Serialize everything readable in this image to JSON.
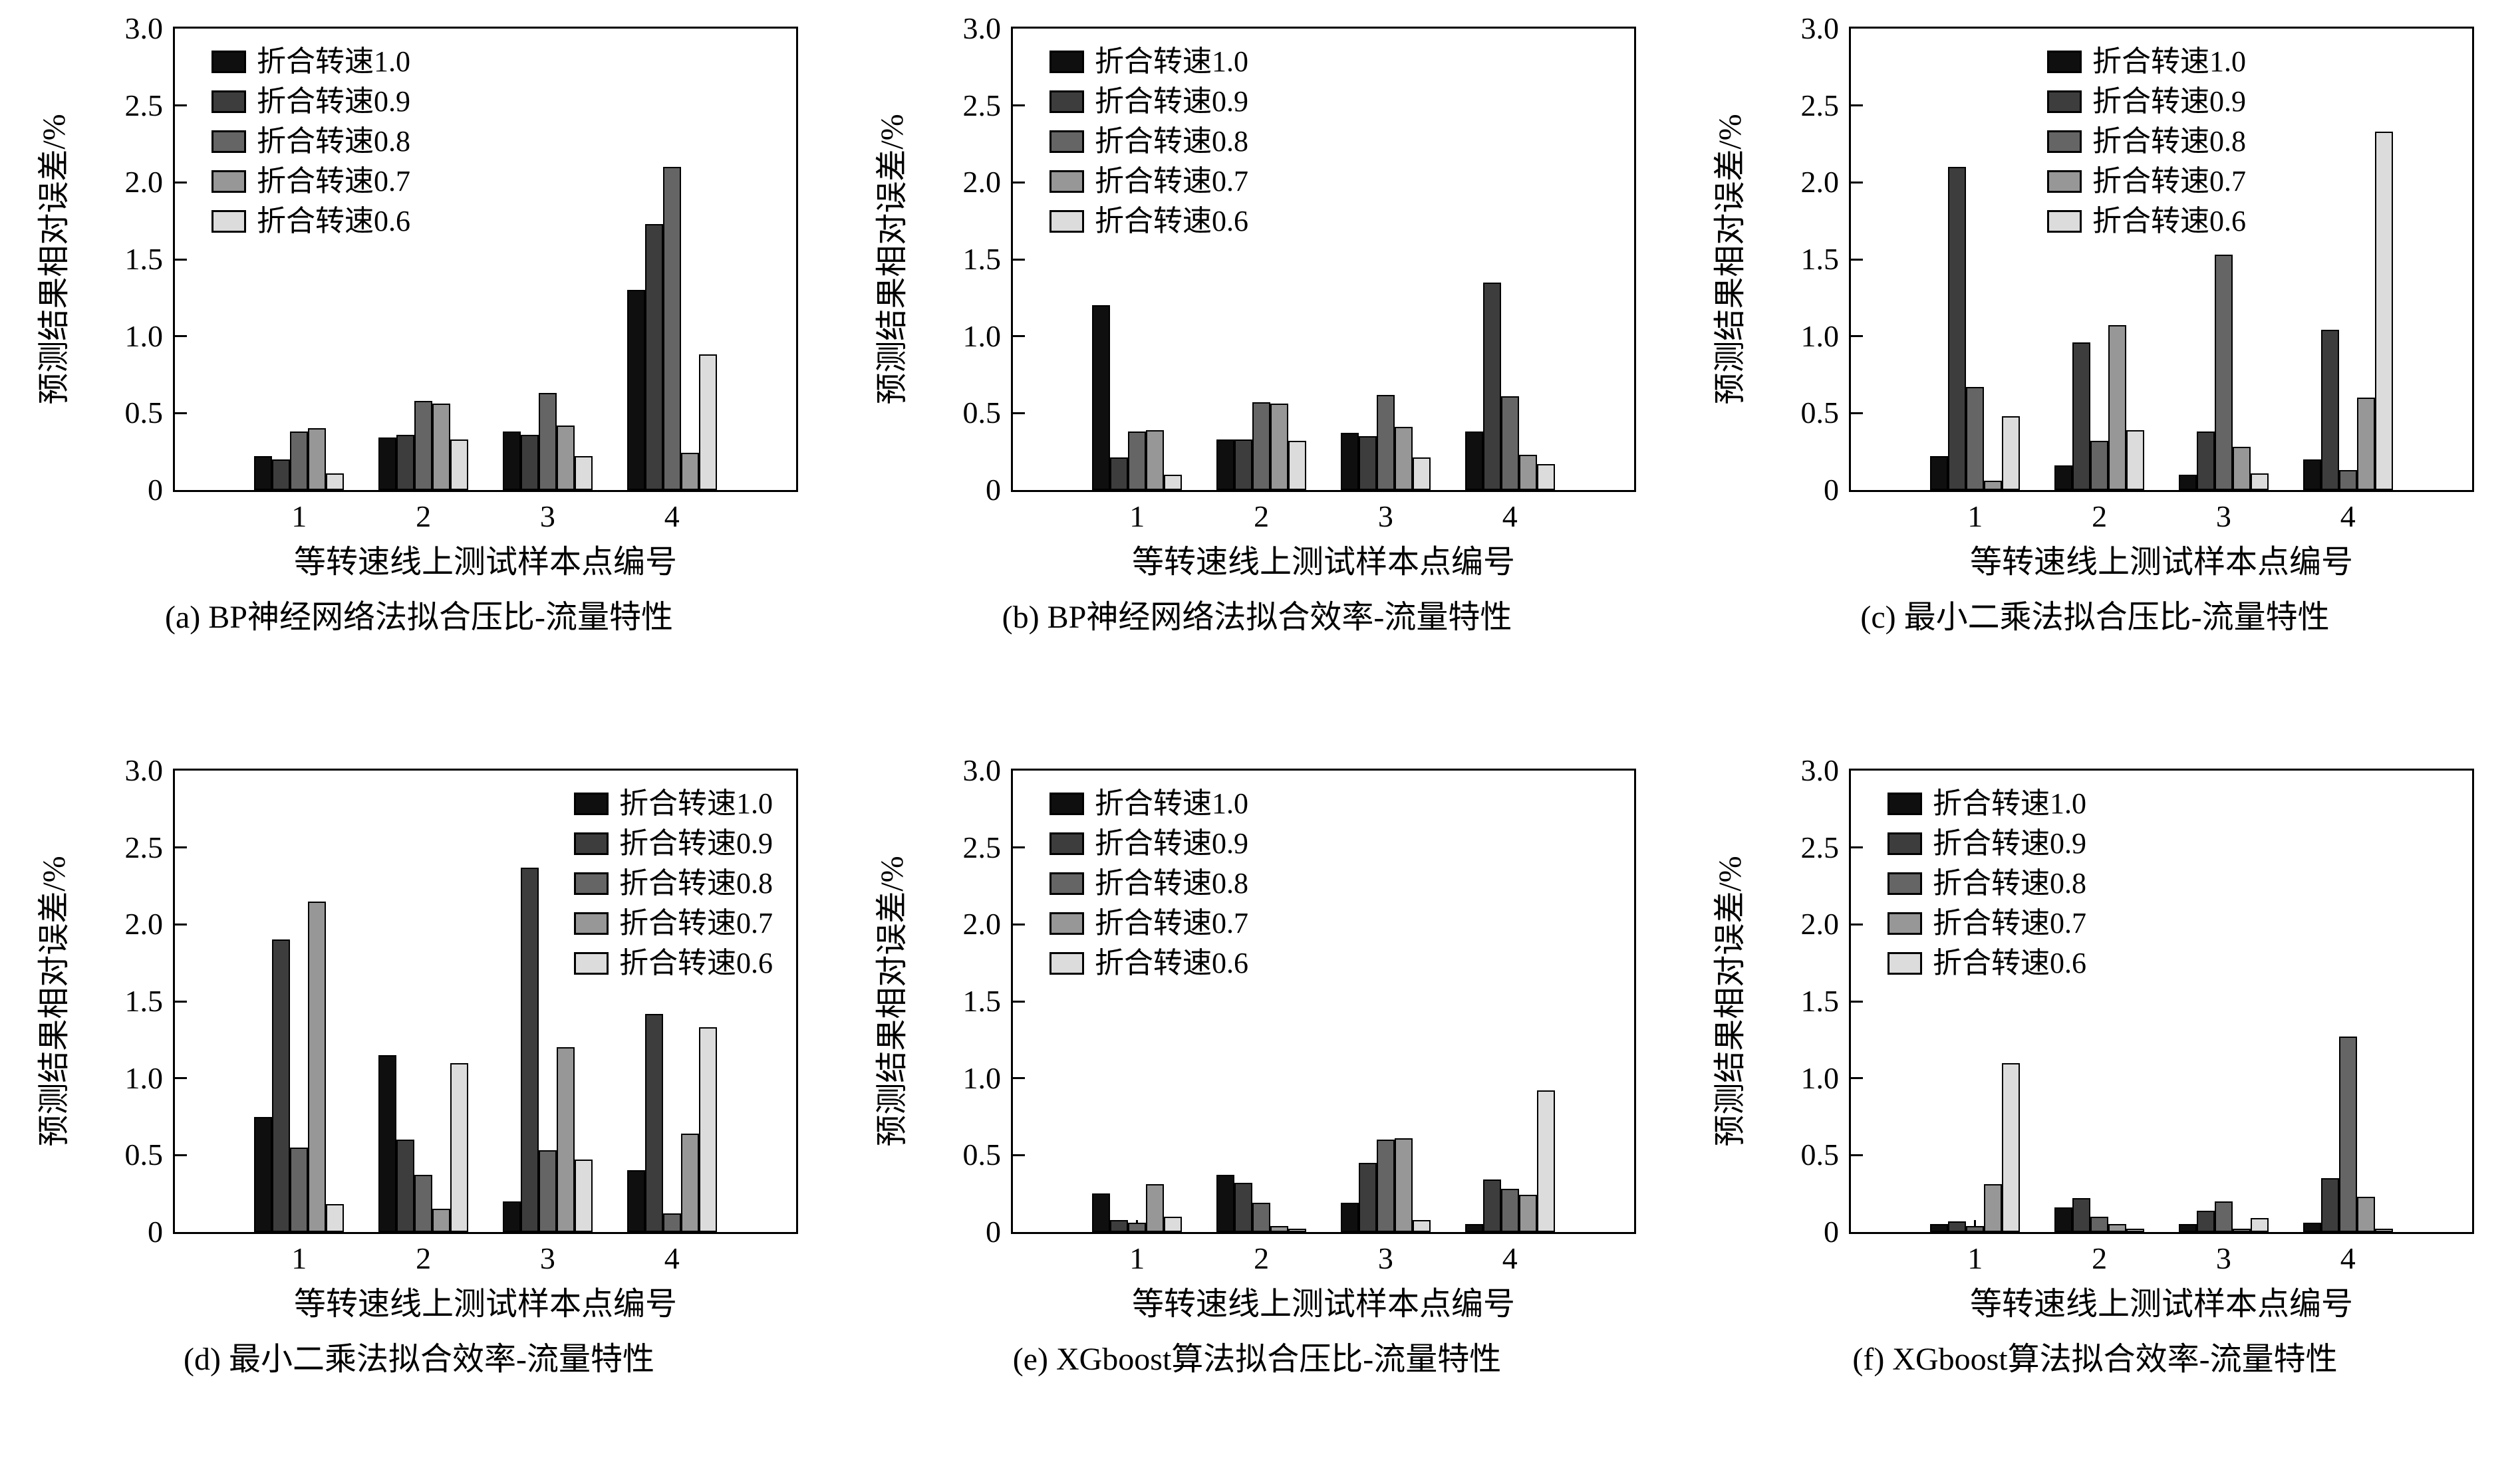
{
  "figure": {
    "ylabel": "预测结果相对误差/%",
    "xlabel": "等转速线上测试样本点编号",
    "legend_labels": [
      "折合转速1.0",
      "折合转速0.9",
      "折合转速0.8",
      "折合转速0.7",
      "折合转速0.6"
    ],
    "series_colors": [
      "#0f0f0f",
      "#3d3d3d",
      "#656565",
      "#979797",
      "#dcdcdc"
    ],
    "ytick_values": [
      0,
      0.5,
      1,
      1.5,
      2,
      2.5,
      3
    ],
    "ytick_labels": [
      "0",
      "0.5",
      "1.0",
      "1.5",
      "2.0",
      "2.5",
      "3.0"
    ],
    "ylim": [
      0,
      3
    ]
  },
  "chart_data": [
    {
      "id": "a",
      "type": "bar",
      "caption": "(a) BP神经网络法拟合压比-流量特性",
      "xlabel": "等转速线上测试样本点编号",
      "ylabel": "预测结果相对误差/%",
      "categories": [
        "1",
        "2",
        "3",
        "4"
      ],
      "ylim": [
        0,
        3.0
      ],
      "legend_pos": "top-left",
      "series": [
        {
          "name": "折合转速1.0",
          "values": [
            0.22,
            0.34,
            0.38,
            1.3
          ]
        },
        {
          "name": "折合转速0.9",
          "values": [
            0.2,
            0.36,
            0.36,
            1.73
          ]
        },
        {
          "name": "折合转速0.8",
          "values": [
            0.38,
            0.58,
            0.63,
            2.1
          ]
        },
        {
          "name": "折合转速0.7",
          "values": [
            0.4,
            0.56,
            0.42,
            0.24
          ]
        },
        {
          "name": "折合转速0.6",
          "values": [
            0.11,
            0.33,
            0.22,
            0.88
          ]
        }
      ]
    },
    {
      "id": "b",
      "type": "bar",
      "caption": "(b) BP神经网络法拟合效率-流量特性",
      "xlabel": "等转速线上测试样本点编号",
      "ylabel": "预测结果相对误差/%",
      "categories": [
        "1",
        "2",
        "3",
        "4"
      ],
      "ylim": [
        0,
        3.0
      ],
      "legend_pos": "top-left",
      "series": [
        {
          "name": "折合转速1.0",
          "values": [
            1.2,
            0.33,
            0.37,
            0.38
          ]
        },
        {
          "name": "折合转速0.9",
          "values": [
            0.21,
            0.33,
            0.35,
            1.35
          ]
        },
        {
          "name": "折合转速0.8",
          "values": [
            0.38,
            0.57,
            0.62,
            0.61
          ]
        },
        {
          "name": "折合转速0.7",
          "values": [
            0.39,
            0.56,
            0.41,
            0.23
          ]
        },
        {
          "name": "折合转速0.6",
          "values": [
            0.1,
            0.32,
            0.21,
            0.17
          ]
        }
      ]
    },
    {
      "id": "c",
      "type": "bar",
      "caption": "(c) 最小二乘法拟合压比-流量特性",
      "xlabel": "等转速线上测试样本点编号",
      "ylabel": "预测结果相对误差/%",
      "categories": [
        "1",
        "2",
        "3",
        "4"
      ],
      "ylim": [
        0,
        3.0
      ],
      "legend_pos": "top-center",
      "series": [
        {
          "name": "折合转速1.0",
          "values": [
            0.22,
            0.16,
            0.1,
            0.2
          ]
        },
        {
          "name": "折合转速0.9",
          "values": [
            2.1,
            0.96,
            0.38,
            1.04
          ]
        },
        {
          "name": "折合转速0.8",
          "values": [
            0.67,
            0.32,
            1.53,
            0.13
          ]
        },
        {
          "name": "折合转速0.7",
          "values": [
            0.06,
            1.07,
            0.28,
            0.6
          ]
        },
        {
          "name": "折合转速0.6",
          "values": [
            0.48,
            0.39,
            0.11,
            2.33
          ]
        }
      ]
    },
    {
      "id": "d",
      "type": "bar",
      "caption": "(d) 最小二乘法拟合效率-流量特性",
      "xlabel": "等转速线上测试样本点编号",
      "ylabel": "预测结果相对误差/%",
      "categories": [
        "1",
        "2",
        "3",
        "4"
      ],
      "ylim": [
        0,
        3.0
      ],
      "legend_pos": "top-right",
      "series": [
        {
          "name": "折合转速1.0",
          "values": [
            0.75,
            1.15,
            0.2,
            0.4
          ]
        },
        {
          "name": "折合转速0.9",
          "values": [
            1.9,
            0.6,
            2.37,
            1.42
          ]
        },
        {
          "name": "折合转速0.8",
          "values": [
            0.55,
            0.37,
            0.53,
            0.12
          ]
        },
        {
          "name": "折合转速0.7",
          "values": [
            2.15,
            0.15,
            1.2,
            0.64
          ]
        },
        {
          "name": "折合转速0.6",
          "values": [
            0.18,
            1.1,
            0.47,
            1.33
          ]
        }
      ]
    },
    {
      "id": "e",
      "type": "bar",
      "caption": "(e) XGboost算法拟合压比-流量特性",
      "xlabel": "等转速线上测试样本点编号",
      "ylabel": "预测结果相对误差/%",
      "categories": [
        "1",
        "2",
        "3",
        "4"
      ],
      "ylim": [
        0,
        3.0
      ],
      "legend_pos": "top-left",
      "series": [
        {
          "name": "折合转速1.0",
          "values": [
            0.25,
            0.37,
            0.19,
            0.05
          ]
        },
        {
          "name": "折合转速0.9",
          "values": [
            0.08,
            0.32,
            0.45,
            0.34
          ]
        },
        {
          "name": "折合转速0.8",
          "values": [
            0.06,
            0.19,
            0.6,
            0.28
          ]
        },
        {
          "name": "折合转速0.7",
          "values": [
            0.31,
            0.04,
            0.61,
            0.24
          ]
        },
        {
          "name": "折合转速0.6",
          "values": [
            0.1,
            0.02,
            0.08,
            0.92
          ]
        }
      ]
    },
    {
      "id": "f",
      "type": "bar",
      "caption": "(f) XGboost算法拟合效率-流量特性",
      "xlabel": "等转速线上测试样本点编号",
      "ylabel": "预测结果相对误差/%",
      "categories": [
        "1",
        "2",
        "3",
        "4"
      ],
      "ylim": [
        0,
        3.0
      ],
      "legend_pos": "top-left",
      "series": [
        {
          "name": "折合转速1.0",
          "values": [
            0.05,
            0.16,
            0.05,
            0.06
          ]
        },
        {
          "name": "折合转速0.9",
          "values": [
            0.07,
            0.22,
            0.14,
            0.35
          ]
        },
        {
          "name": "折合转速0.8",
          "values": [
            0.04,
            0.1,
            0.2,
            1.27
          ]
        },
        {
          "name": "折合转速0.7",
          "values": [
            0.31,
            0.05,
            0.02,
            0.23
          ]
        },
        {
          "name": "折合转速0.6",
          "values": [
            1.1,
            0.02,
            0.09,
            0.02
          ]
        }
      ]
    }
  ]
}
